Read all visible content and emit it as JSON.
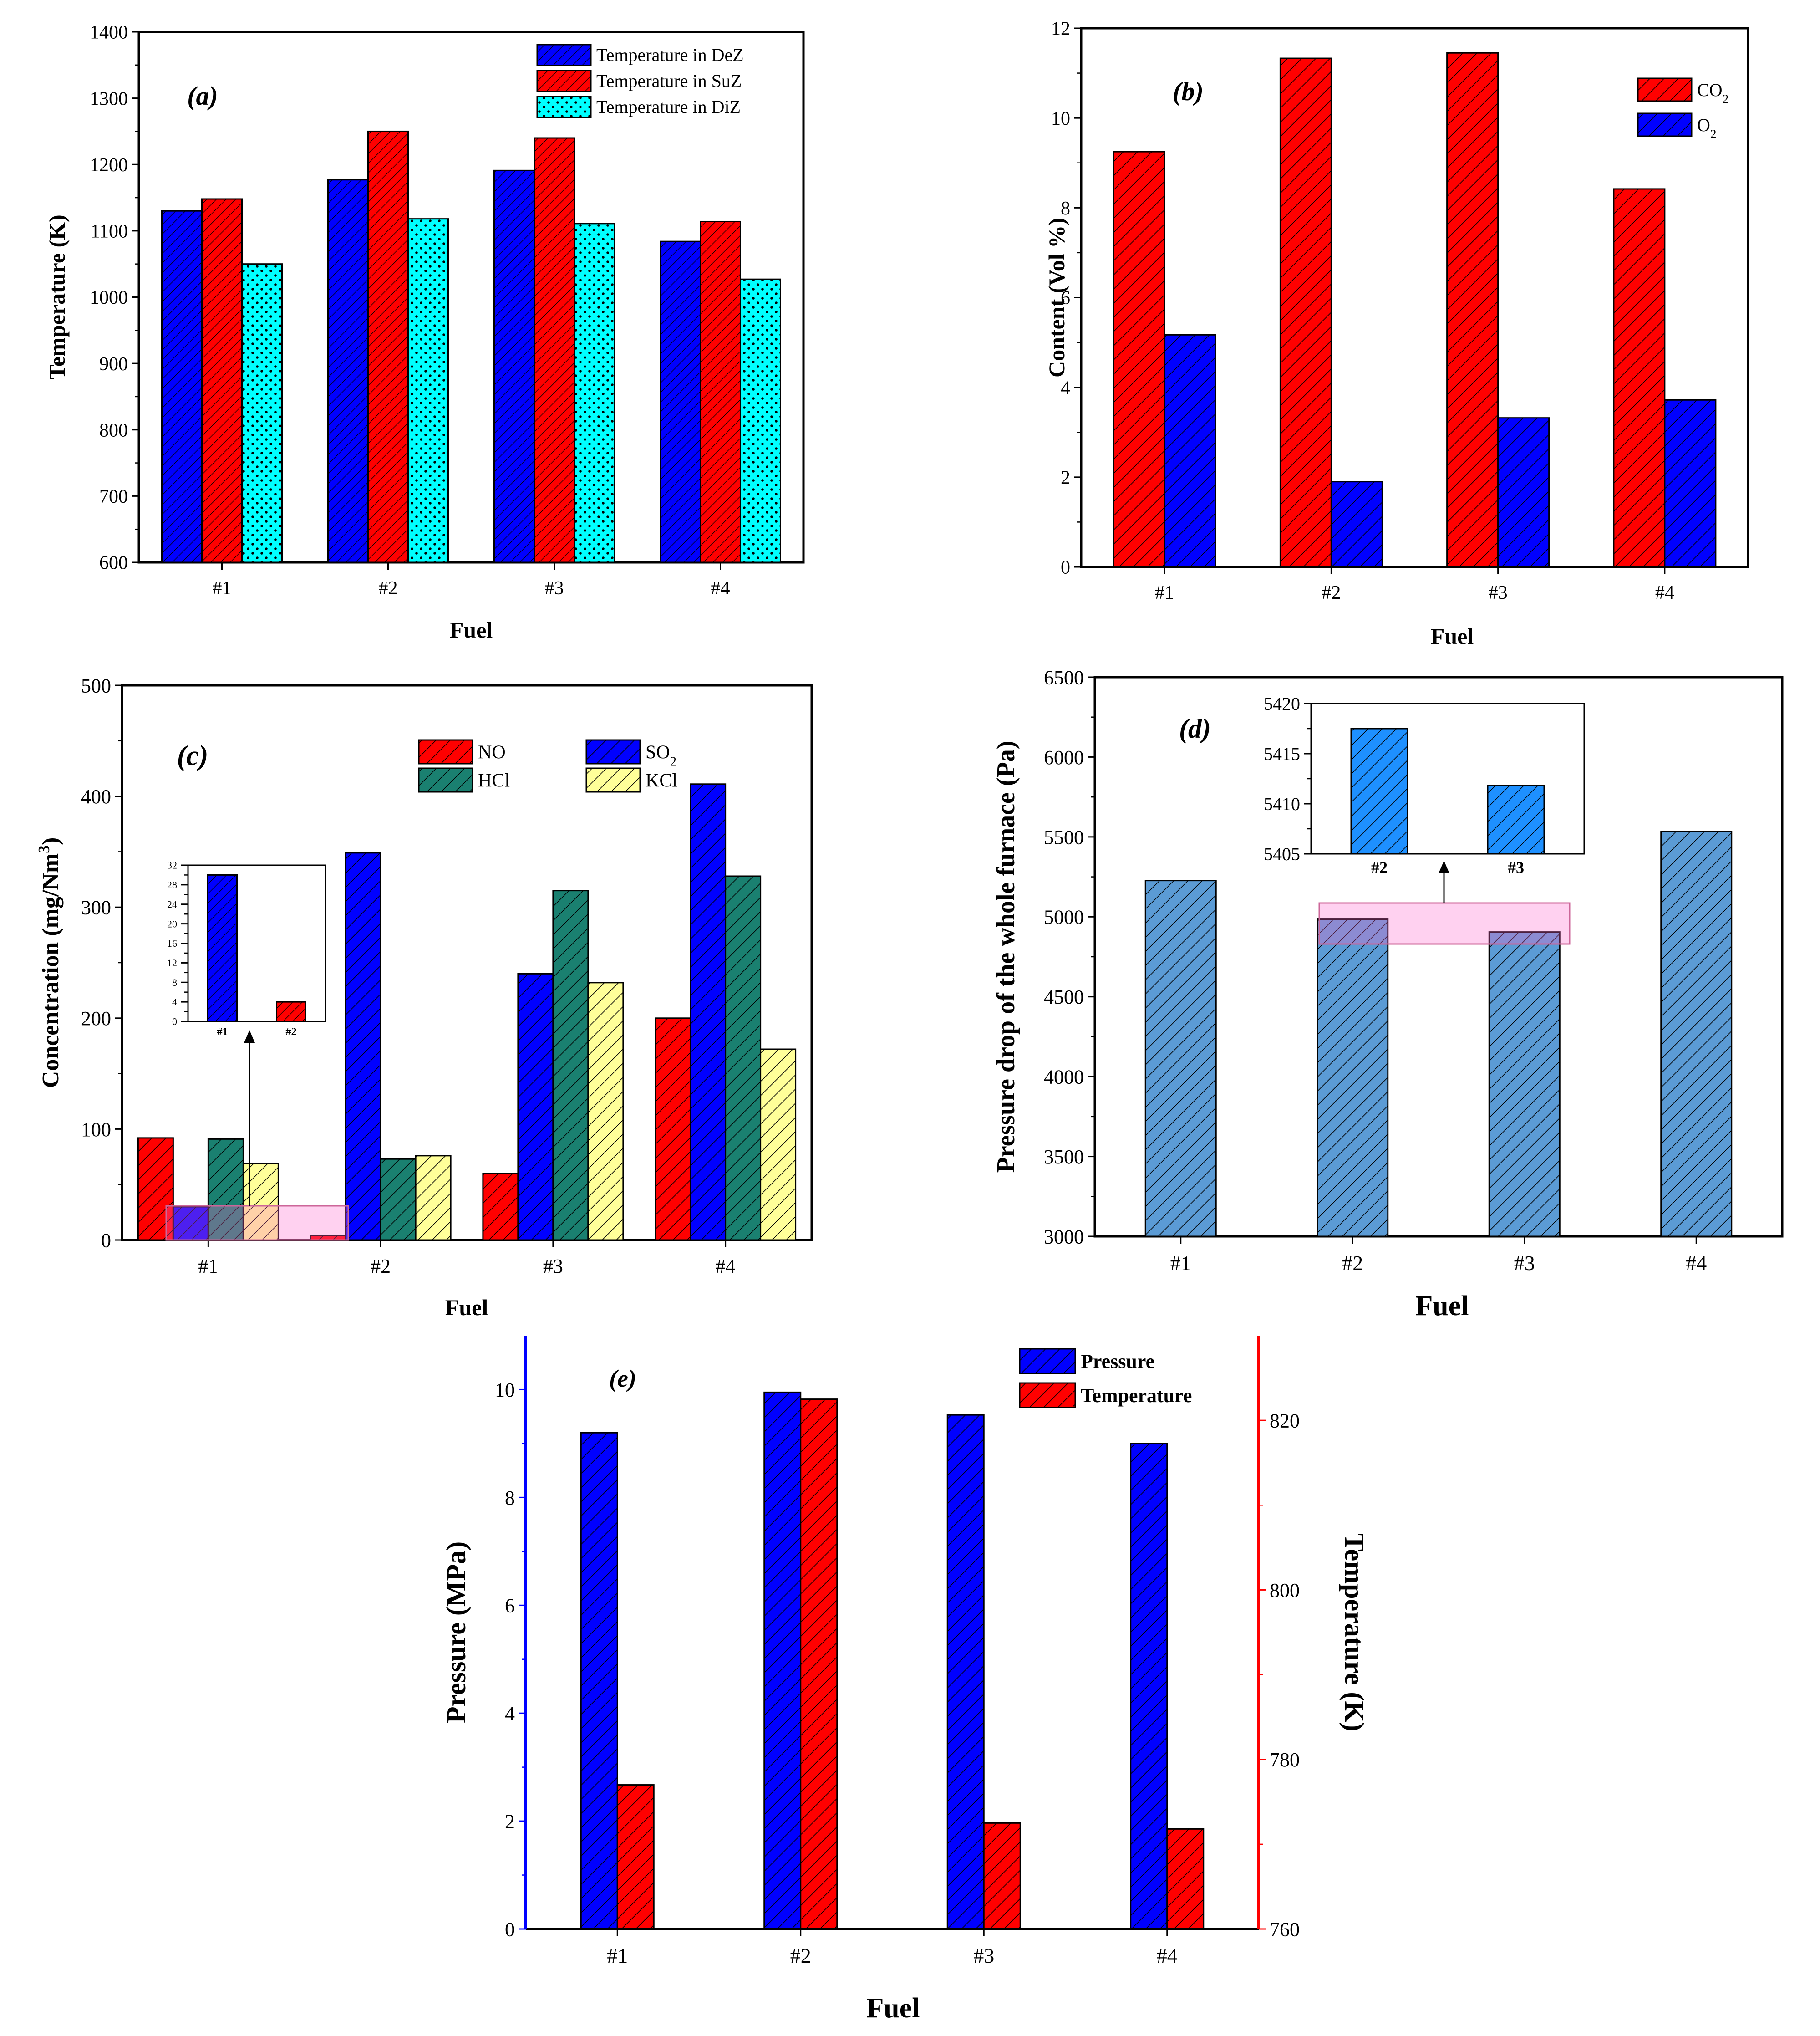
{
  "figure": {
    "category_axis_label": "Fuel"
  },
  "chart_data": [
    {
      "id": "a",
      "type": "bar",
      "panel_label": "(a)",
      "title": "",
      "xlabel": "Fuel",
      "ylabel": "Temperature (K)",
      "ylim": [
        600,
        1400
      ],
      "yticks": [
        "600",
        "700",
        "800",
        "900",
        "1000",
        "1100",
        "1200",
        "1300",
        "1400"
      ],
      "categories": [
        "#1",
        "#2",
        "#3",
        "#4"
      ],
      "legend_position": "top-right",
      "series": [
        {
          "name": "Temperature in DeZ",
          "color": "#0000ff",
          "pattern": "diag-dense",
          "values": [
            1130,
            1177,
            1191,
            1084
          ]
        },
        {
          "name": "Temperature in SuZ",
          "color": "#ff0000",
          "pattern": "diag-dense",
          "values": [
            1148,
            1250,
            1240,
            1114
          ]
        },
        {
          "name": "Temperature in DiZ",
          "color": "#00ffff",
          "pattern": "dots",
          "values": [
            1050,
            1118,
            1111,
            1027
          ]
        }
      ]
    },
    {
      "id": "b",
      "type": "bar",
      "panel_label": "(b)",
      "title": "",
      "xlabel": "Fuel",
      "ylabel": "Content (Vol %)",
      "ylim": [
        0,
        12
      ],
      "yticks": [
        "0",
        "2",
        "4",
        "6",
        "8",
        "10",
        "12"
      ],
      "categories": [
        "#1",
        "#2",
        "#3",
        "#4"
      ],
      "legend_position": "top-right",
      "series": [
        {
          "name": "CO",
          "subscript": "2",
          "color": "#ff0000",
          "pattern": "diag",
          "values": [
            9.25,
            11.33,
            11.45,
            8.42
          ]
        },
        {
          "name": "O",
          "subscript": "2",
          "color": "#0000ff",
          "pattern": "diag",
          "values": [
            5.17,
            1.9,
            3.32,
            3.72
          ]
        }
      ]
    },
    {
      "id": "c",
      "type": "bar",
      "panel_label": "(c)",
      "title": "",
      "xlabel": "Fuel",
      "ylabel": "Concentration (mg/Nm",
      "ylabel_superscript": "3",
      "ylabel_suffix": ")",
      "ylim": [
        0,
        500
      ],
      "yticks": [
        "0",
        "100",
        "200",
        "300",
        "400",
        "500"
      ],
      "categories": [
        "#1",
        "#2",
        "#3",
        "#4"
      ],
      "legend_position": "top-right",
      "series": [
        {
          "name": "NO",
          "subscript": "",
          "color": "#ff0000",
          "pattern": "diag",
          "values": [
            92,
            4,
            60,
            200
          ]
        },
        {
          "name": "SO",
          "subscript": "2",
          "color": "#0000ff",
          "pattern": "diag",
          "values": [
            30,
            349,
            240,
            411
          ]
        },
        {
          "name": "HCl",
          "subscript": "",
          "color": "#1a8070",
          "pattern": "diag",
          "values": [
            91,
            73,
            315,
            328
          ]
        },
        {
          "name": "KCl",
          "subscript": "",
          "color": "#ffff99",
          "pattern": "diag",
          "values": [
            69,
            76,
            232,
            172
          ]
        }
      ],
      "inset": {
        "ylim": [
          0,
          32
        ],
        "yticks": [
          "0",
          "4",
          "8",
          "12",
          "16",
          "20",
          "24",
          "28",
          "32"
        ],
        "categories": [
          "#1",
          "#2"
        ],
        "values": [
          30,
          4
        ],
        "colors": [
          "#0000ff",
          "#ff0000"
        ]
      }
    },
    {
      "id": "d",
      "type": "bar",
      "panel_label": "(d)",
      "title": "",
      "xlabel": "Fuel",
      "ylabel": "Pressure drop of the whole furnace (Pa)",
      "ylim": [
        3000,
        6500
      ],
      "yticks": [
        "3000",
        "3500",
        "4000",
        "4500",
        "5000",
        "5500",
        "6000",
        "6500"
      ],
      "categories": [
        "#1",
        "#2",
        "#3",
        "#4"
      ],
      "series": [
        {
          "name": "Pressure drop",
          "color": "#5b9bd5",
          "pattern": "diag",
          "values": [
            5227,
            4985,
            4905,
            5533
          ]
        }
      ],
      "inset": {
        "ylim": [
          5405,
          5420
        ],
        "yticks": [
          "5405",
          "5410",
          "5415",
          "5420"
        ],
        "categories": [
          "#2",
          "#3"
        ],
        "values": [
          5417.5,
          5411.8
        ],
        "color": "#1e90ff"
      }
    },
    {
      "id": "e",
      "type": "bar",
      "panel_label": "(e)",
      "title": "",
      "xlabel": "Fuel",
      "ylabel_left": "Pressure (MPa)",
      "ylabel_right": "Temperature (K)",
      "ylim_left": [
        0,
        11
      ],
      "yticks_left": [
        "0",
        "2",
        "4",
        "6",
        "8",
        "10"
      ],
      "ylim_right": [
        760,
        830
      ],
      "yticks_right": [
        "760",
        "780",
        "800",
        "820"
      ],
      "left_axis_color": "#0000ff",
      "right_axis_color": "#ff0000",
      "categories": [
        "#1",
        "#2",
        "#3",
        "#4"
      ],
      "legend_position": "top-right",
      "series": [
        {
          "name": "Pressure",
          "axis": "left",
          "color": "#0000ff",
          "pattern": "diag",
          "values": [
            9.2,
            9.95,
            9.53,
            9.0
          ]
        },
        {
          "name": "Temperature",
          "axis": "right",
          "color": "#ff0000",
          "pattern": "diag",
          "values": [
            777,
            822.5,
            772.5,
            771.8
          ]
        }
      ]
    }
  ]
}
